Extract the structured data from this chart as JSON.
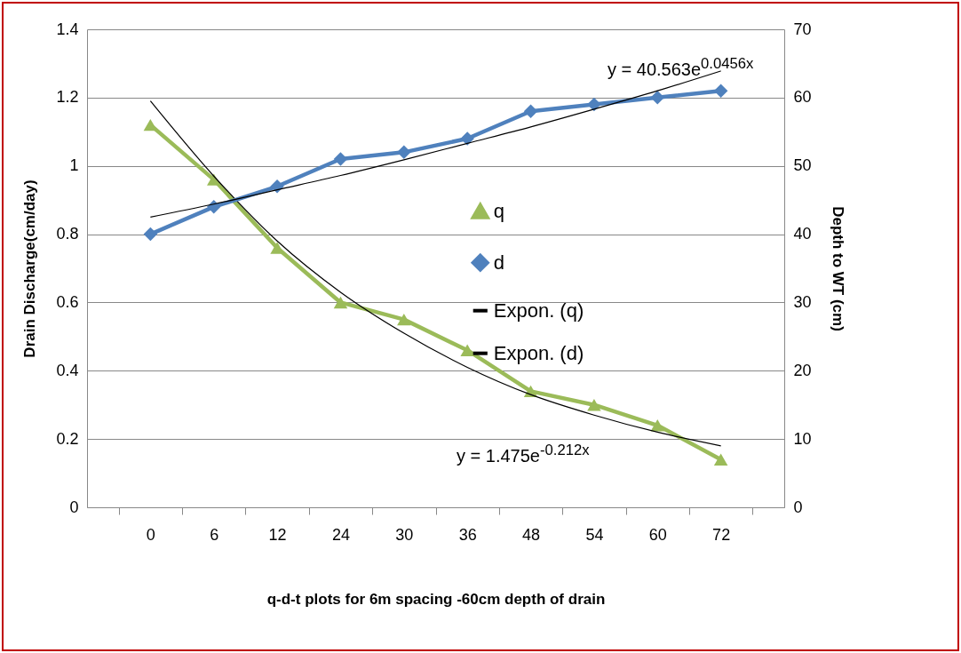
{
  "chart_data": {
    "type": "line",
    "xlabel": "q-d-t plots for 6m spacing -60cm depth of drain",
    "ylabel": "Drain Discharge(cm/day)",
    "y2label": "Depth to WT (cm)",
    "categories": [
      "0",
      "6",
      "12",
      "24",
      "30",
      "36",
      "48",
      "54",
      "60",
      "72"
    ],
    "series": [
      {
        "name": "q",
        "color": "#9bbb59",
        "marker": "triangle",
        "values": [
          1.12,
          0.96,
          0.76,
          0.6,
          0.55,
          0.46,
          0.34,
          0.3,
          0.24,
          0.14
        ]
      },
      {
        "name": "d",
        "color": "#4f81bd",
        "marker": "diamond",
        "axis": "y2",
        "values": [
          40,
          44,
          47,
          51,
          52,
          54,
          58,
          59,
          60,
          61
        ]
      },
      {
        "name": "Expon. (q)",
        "color": "#000000",
        "marker": "none",
        "values": [
          1.19,
          0.97,
          0.78,
          0.63,
          0.51,
          0.41,
          0.33,
          0.27,
          0.22,
          0.18
        ]
      },
      {
        "name": "Expon. (d)",
        "color": "#000000",
        "marker": "none",
        "axis": "y2",
        "values": [
          42.5,
          44.4,
          46.5,
          48.6,
          50.9,
          53.3,
          55.7,
          58.3,
          61.0,
          63.9
        ]
      }
    ],
    "ylim": [
      0,
      1.4
    ],
    "yticks": [
      0,
      0.2,
      0.4,
      0.6,
      0.8,
      1,
      1.2,
      1.4
    ],
    "y2lim": [
      0,
      70
    ],
    "y2ticks": [
      0,
      10,
      20,
      30,
      40,
      50,
      60,
      70
    ],
    "grid": "y",
    "legend": "right",
    "annotations": [
      "y = 40.563e$^{0.0456x}$",
      "y = 1.475e$^{-0.212x}$"
    ]
  }
}
